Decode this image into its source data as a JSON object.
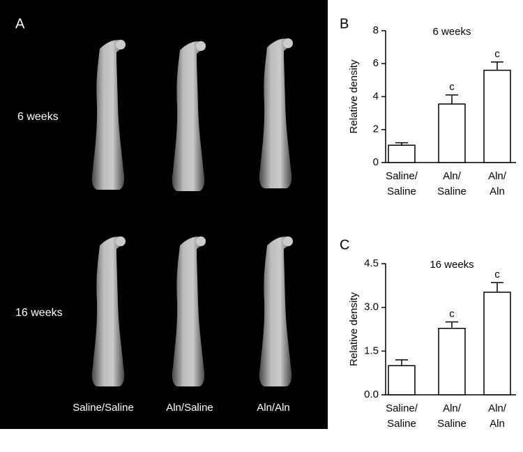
{
  "panel_a": {
    "label": "A",
    "rows": [
      "6 weeks",
      "16 weeks"
    ],
    "columns": [
      "Saline/Saline",
      "Aln/Saline",
      "Aln/Aln"
    ]
  },
  "chart_data": [
    {
      "type": "bar",
      "panel": "B",
      "title": "6 weeks",
      "ylabel": "Relative density",
      "categories": [
        "Saline/\nSaline",
        "Aln/\nSaline",
        "Aln/\nAln"
      ],
      "values": [
        1.05,
        3.55,
        5.6
      ],
      "errors": [
        0.15,
        0.55,
        0.5
      ],
      "annotations": [
        null,
        "c",
        "c"
      ],
      "color": "#ffffff",
      "ylim": [
        0,
        8
      ],
      "yticks": [
        0,
        2,
        4,
        6,
        8
      ]
    },
    {
      "type": "bar",
      "panel": "C",
      "title": "16 weeks",
      "ylabel": "Relative density",
      "categories": [
        "Saline/\nSaline",
        "Aln/\nSaline",
        "Aln/\nAln"
      ],
      "values": [
        1.0,
        2.28,
        3.52
      ],
      "errors": [
        0.2,
        0.22,
        0.33
      ],
      "annotations": [
        null,
        "c",
        "c"
      ],
      "color": "#ffffff",
      "ylim": [
        0,
        4.5
      ],
      "yticks": [
        {
          "value": 0,
          "label": "0.0"
        },
        1.5,
        {
          "value": 3,
          "label": "3.0"
        },
        4.5
      ]
    }
  ]
}
